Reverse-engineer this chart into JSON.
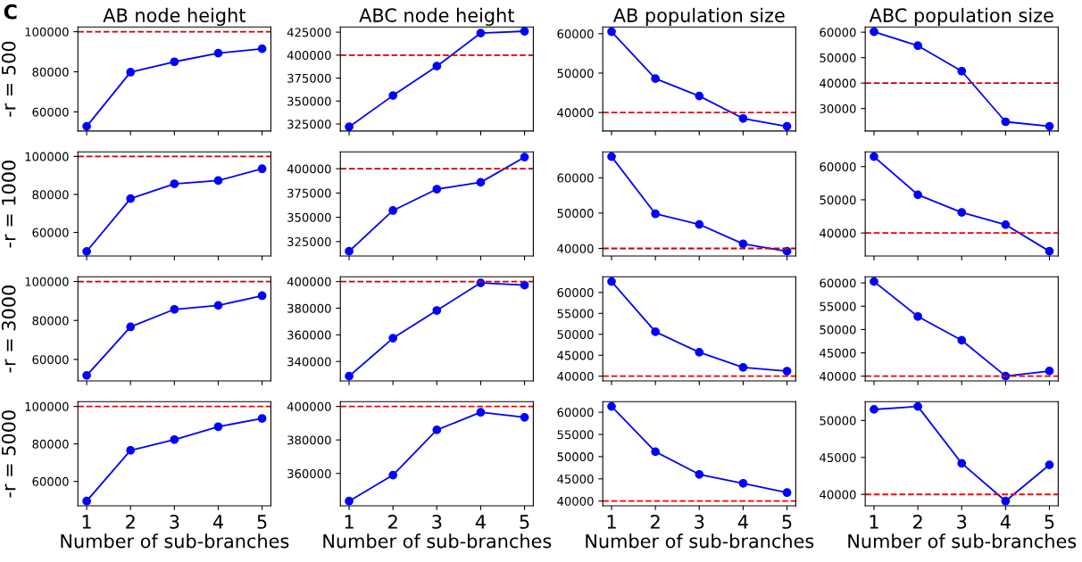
{
  "chart_data": [
    {
      "type": "line",
      "title": "AB node height",
      "ylabel": "-r = 500",
      "annotations": [
        "C"
      ],
      "x": [
        1,
        2,
        3,
        4,
        5
      ],
      "series": [
        {
          "color": "#0000ff",
          "values": [
            52800,
            79800,
            85000,
            89300,
            91500
          ]
        }
      ],
      "xlim": [
        0.8,
        5.2
      ],
      "xticks": [
        1,
        2,
        3,
        4,
        5
      ],
      "ylim": [
        50440,
        102360
      ],
      "yticks": [
        60000,
        80000,
        100000
      ],
      "tick_labels": "y",
      "marker": "circle",
      "line_style": "solid",
      "ref_lines": [
        {
          "axis": "y",
          "value": 100000,
          "color": "#cc0000",
          "line_style": "dashed"
        }
      ]
    },
    {
      "type": "line",
      "title": "ABC node height",
      "x": [
        1,
        2,
        3,
        4,
        5
      ],
      "series": [
        {
          "color": "#0000ff",
          "values": [
            322000,
            356000,
            388000,
            424000,
            426000
          ]
        }
      ],
      "xlim": [
        0.8,
        5.2
      ],
      "xticks": [
        1,
        2,
        3,
        4,
        5
      ],
      "ylim": [
        317350,
        430650
      ],
      "yticks": [
        325000,
        350000,
        375000,
        400000,
        425000
      ],
      "tick_labels": "y",
      "marker": "circle",
      "line_style": "solid",
      "ref_lines": [
        {
          "axis": "y",
          "value": 400000,
          "color": "#cc0000",
          "line_style": "dashed"
        }
      ]
    },
    {
      "type": "line",
      "title": "AB population size",
      "x": [
        1,
        2,
        3,
        4,
        5
      ],
      "series": [
        {
          "color": "#0000ff",
          "values": [
            60500,
            48600,
            44200,
            38500,
            36500
          ]
        }
      ],
      "xlim": [
        0.8,
        5.2
      ],
      "xticks": [
        1,
        2,
        3,
        4,
        5
      ],
      "ylim": [
        35300,
        61700
      ],
      "yticks": [
        40000,
        50000,
        60000
      ],
      "tick_labels": "y",
      "marker": "circle",
      "line_style": "solid",
      "ref_lines": [
        {
          "axis": "y",
          "value": 40000,
          "color": "#ee0000",
          "line_style": "dashed"
        }
      ]
    },
    {
      "type": "line",
      "title": "ABC population size",
      "x": [
        1,
        2,
        3,
        4,
        5
      ],
      "series": [
        {
          "color": "#0000ff",
          "values": [
            60200,
            54700,
            44700,
            24800,
            23000
          ]
        }
      ],
      "xlim": [
        0.8,
        5.2
      ],
      "xticks": [
        1,
        2,
        3,
        4,
        5
      ],
      "ylim": [
        21140,
        62060
      ],
      "yticks": [
        30000,
        40000,
        50000,
        60000
      ],
      "tick_labels": "y",
      "marker": "circle",
      "line_style": "solid",
      "ref_lines": [
        {
          "axis": "y",
          "value": 40000,
          "color": "#cc0000",
          "line_style": "dashed"
        }
      ]
    },
    {
      "type": "line",
      "ylabel": "-r = 1000",
      "x": [
        1,
        2,
        3,
        4,
        5
      ],
      "series": [
        {
          "color": "#0000ff",
          "values": [
            50000,
            77800,
            85600,
            87300,
            93500
          ]
        }
      ],
      "xlim": [
        0.8,
        5.2
      ],
      "xticks": [
        1,
        2,
        3,
        4,
        5
      ],
      "ylim": [
        47600,
        102400
      ],
      "yticks": [
        60000,
        80000,
        100000
      ],
      "tick_labels": "y",
      "marker": "circle",
      "line_style": "solid",
      "ref_lines": [
        {
          "axis": "y",
          "value": 100000,
          "color": "#cc0000",
          "line_style": "dashed"
        }
      ]
    },
    {
      "type": "line",
      "x": [
        1,
        2,
        3,
        4,
        5
      ],
      "series": [
        {
          "color": "#0000ff",
          "values": [
            315000,
            357000,
            379000,
            386000,
            412000
          ]
        }
      ],
      "xlim": [
        0.8,
        5.2
      ],
      "xticks": [
        1,
        2,
        3,
        4,
        5
      ],
      "ylim": [
        310125,
        417375
      ],
      "yticks": [
        325000,
        350000,
        375000,
        400000
      ],
      "tick_labels": "y",
      "marker": "circle",
      "line_style": "solid",
      "ref_lines": [
        {
          "axis": "y",
          "value": 400000,
          "color": "#cc0000",
          "line_style": "dashed"
        }
      ]
    },
    {
      "type": "line",
      "x": [
        1,
        2,
        3,
        4,
        5
      ],
      "series": [
        {
          "color": "#0000ff",
          "values": [
            66000,
            49800,
            46800,
            41300,
            39200
          ]
        }
      ],
      "xlim": [
        0.8,
        5.2
      ],
      "xticks": [
        1,
        2,
        3,
        4,
        5
      ],
      "ylim": [
        37860,
        67340
      ],
      "yticks": [
        40000,
        50000,
        60000
      ],
      "tick_labels": "y",
      "marker": "circle",
      "line_style": "solid",
      "ref_lines": [
        {
          "axis": "y",
          "value": 40000,
          "color": "#cc0000",
          "line_style": "dashed"
        }
      ]
    },
    {
      "type": "line",
      "x": [
        1,
        2,
        3,
        4,
        5
      ],
      "series": [
        {
          "color": "#0000ff",
          "values": [
            63000,
            51500,
            46200,
            42500,
            34500
          ]
        }
      ],
      "xlim": [
        0.8,
        5.2
      ],
      "xticks": [
        1,
        2,
        3,
        4,
        5
      ],
      "ylim": [
        33075,
        64425
      ],
      "yticks": [
        40000,
        50000,
        60000
      ],
      "tick_labels": "y",
      "marker": "circle",
      "line_style": "solid",
      "ref_lines": [
        {
          "axis": "y",
          "value": 40000,
          "color": "#ee0000",
          "line_style": "dashed"
        }
      ]
    },
    {
      "type": "line",
      "ylabel": "-r = 3000",
      "x": [
        1,
        2,
        3,
        4,
        5
      ],
      "series": [
        {
          "color": "#0000ff",
          "values": [
            51800,
            76700,
            85700,
            87700,
            92700
          ]
        }
      ],
      "xlim": [
        0.8,
        5.2
      ],
      "xticks": [
        1,
        2,
        3,
        4,
        5
      ],
      "ylim": [
        49000,
        102400
      ],
      "yticks": [
        60000,
        80000,
        100000
      ],
      "tick_labels": "y",
      "marker": "circle",
      "line_style": "solid",
      "ref_lines": [
        {
          "axis": "y",
          "value": 100000,
          "color": "#cc0000",
          "line_style": "dashed"
        }
      ]
    },
    {
      "type": "line",
      "x": [
        1,
        2,
        3,
        4,
        5
      ],
      "series": [
        {
          "color": "#0000ff",
          "values": [
            329000,
            357500,
            378300,
            399000,
            397300
          ]
        }
      ],
      "xlim": [
        0.8,
        5.2
      ],
      "xticks": [
        1,
        2,
        3,
        4,
        5
      ],
      "ylim": [
        325450,
        403550
      ],
      "yticks": [
        340000,
        360000,
        380000,
        400000
      ],
      "tick_labels": "y",
      "marker": "circle",
      "line_style": "solid",
      "ref_lines": [
        {
          "axis": "y",
          "value": 400000,
          "color": "#cc0000",
          "line_style": "dashed"
        }
      ]
    },
    {
      "type": "line",
      "x": [
        1,
        2,
        3,
        4,
        5
      ],
      "series": [
        {
          "color": "#0000ff",
          "values": [
            62600,
            50600,
            45700,
            42100,
            41200
          ]
        }
      ],
      "xlim": [
        0.8,
        5.2
      ],
      "xticks": [
        1,
        2,
        3,
        4,
        5
      ],
      "ylim": [
        38870,
        63730
      ],
      "yticks": [
        40000,
        45000,
        50000,
        55000,
        60000
      ],
      "tick_labels": "y",
      "marker": "circle",
      "line_style": "solid",
      "ref_lines": [
        {
          "axis": "y",
          "value": 40000,
          "color": "#ee0000",
          "line_style": "dashed"
        }
      ]
    },
    {
      "type": "line",
      "x": [
        1,
        2,
        3,
        4,
        5
      ],
      "series": [
        {
          "color": "#0000ff",
          "values": [
            60300,
            52800,
            47700,
            40000,
            41100
          ]
        }
      ],
      "xlim": [
        0.8,
        5.2
      ],
      "xticks": [
        1,
        2,
        3,
        4,
        5
      ],
      "ylim": [
        38985,
        61315
      ],
      "yticks": [
        40000,
        45000,
        50000,
        55000,
        60000
      ],
      "tick_labels": "y",
      "marker": "circle",
      "line_style": "solid",
      "ref_lines": [
        {
          "axis": "y",
          "value": 40000,
          "color": "#ee0000",
          "line_style": "dashed"
        }
      ]
    },
    {
      "type": "line",
      "ylabel": "-r = 5000",
      "xlabel": "Number of sub-branches",
      "x": [
        1,
        2,
        3,
        4,
        5
      ],
      "series": [
        {
          "color": "#0000ff",
          "values": [
            49500,
            76600,
            82300,
            89200,
            93600
          ]
        }
      ],
      "xlim": [
        0.8,
        5.2
      ],
      "xticks": [
        1,
        2,
        3,
        4,
        5
      ],
      "ylim": [
        46975,
        102525
      ],
      "yticks": [
        60000,
        80000,
        100000
      ],
      "marker": "circle",
      "line_style": "solid",
      "ref_lines": [
        {
          "axis": "y",
          "value": 100000,
          "color": "#ff0000",
          "line_style": "dashed"
        }
      ]
    },
    {
      "type": "line",
      "xlabel": "Number of sub-branches",
      "x": [
        1,
        2,
        3,
        4,
        5
      ],
      "series": [
        {
          "color": "#0000ff",
          "values": [
            343500,
            359000,
            386000,
            396500,
            393500
          ]
        }
      ],
      "xlim": [
        0.8,
        5.2
      ],
      "xticks": [
        1,
        2,
        3,
        4,
        5
      ],
      "ylim": [
        340675,
        402825
      ],
      "yticks": [
        360000,
        380000,
        400000
      ],
      "marker": "circle",
      "line_style": "solid",
      "ref_lines": [
        {
          "axis": "y",
          "value": 400000,
          "color": "#ff0000",
          "line_style": "dashed"
        }
      ]
    },
    {
      "type": "line",
      "xlabel": "Number of sub-branches",
      "x": [
        1,
        2,
        3,
        4,
        5
      ],
      "series": [
        {
          "color": "#0000ff",
          "values": [
            61300,
            51100,
            46000,
            44000,
            41900
          ]
        }
      ],
      "xlim": [
        0.8,
        5.2
      ],
      "xticks": [
        1,
        2,
        3,
        4,
        5
      ],
      "ylim": [
        38935,
        62365
      ],
      "yticks": [
        40000,
        45000,
        50000,
        55000,
        60000
      ],
      "marker": "circle",
      "line_style": "solid",
      "ref_lines": [
        {
          "axis": "y",
          "value": 40000,
          "color": "#ff0000",
          "line_style": "dashed"
        }
      ]
    },
    {
      "type": "line",
      "xlabel": "Number of sub-branches",
      "x": [
        1,
        2,
        3,
        4,
        5
      ],
      "series": [
        {
          "color": "#0000ff",
          "values": [
            51500,
            51900,
            44200,
            39100,
            44000
          ]
        }
      ],
      "xlim": [
        0.8,
        5.2
      ],
      "xticks": [
        1,
        2,
        3,
        4,
        5
      ],
      "ylim": [
        38460,
        52540
      ],
      "yticks": [
        40000,
        45000,
        50000
      ],
      "marker": "circle",
      "line_style": "solid",
      "ref_lines": [
        {
          "axis": "y",
          "value": 40000,
          "color": "#ff0000",
          "line_style": "dashed"
        }
      ]
    }
  ]
}
